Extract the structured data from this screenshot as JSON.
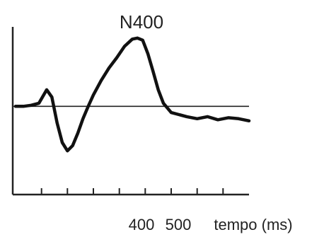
{
  "chart_data": {
    "type": "line",
    "title": "",
    "annotation": "N400",
    "xlabel": "tempo (ms)",
    "ylabel": "",
    "x_tick_labels": [
      "400",
      "500"
    ],
    "xlim": [
      -100,
      800
    ],
    "ylim": [
      -6,
      7
    ],
    "baseline": 0,
    "grid": false,
    "series": [
      {
        "x": [
          -100,
          -70,
          -40,
          -10,
          20,
          40,
          60,
          80,
          100,
          120,
          140,
          160,
          180,
          200,
          230,
          260,
          290,
          320,
          350,
          370,
          390,
          410,
          430,
          450,
          470,
          500,
          530,
          560,
          600,
          640,
          680,
          720,
          760,
          800
        ],
        "values": [
          0.0,
          0.0,
          0.1,
          0.3,
          1.6,
          0.9,
          -1.6,
          -3.5,
          -4.3,
          -3.8,
          -2.6,
          -1.2,
          0.0,
          1.1,
          2.5,
          3.7,
          4.7,
          5.8,
          6.5,
          6.6,
          6.4,
          5.1,
          3.4,
          1.6,
          0.3,
          -0.6,
          -0.8,
          -1.0,
          -1.2,
          -1.0,
          -1.3,
          -1.1,
          -1.2,
          -1.4
        ]
      }
    ],
    "colors": {
      "waveform": "#111111",
      "axes": "#222222",
      "baseline": "#222222"
    }
  }
}
